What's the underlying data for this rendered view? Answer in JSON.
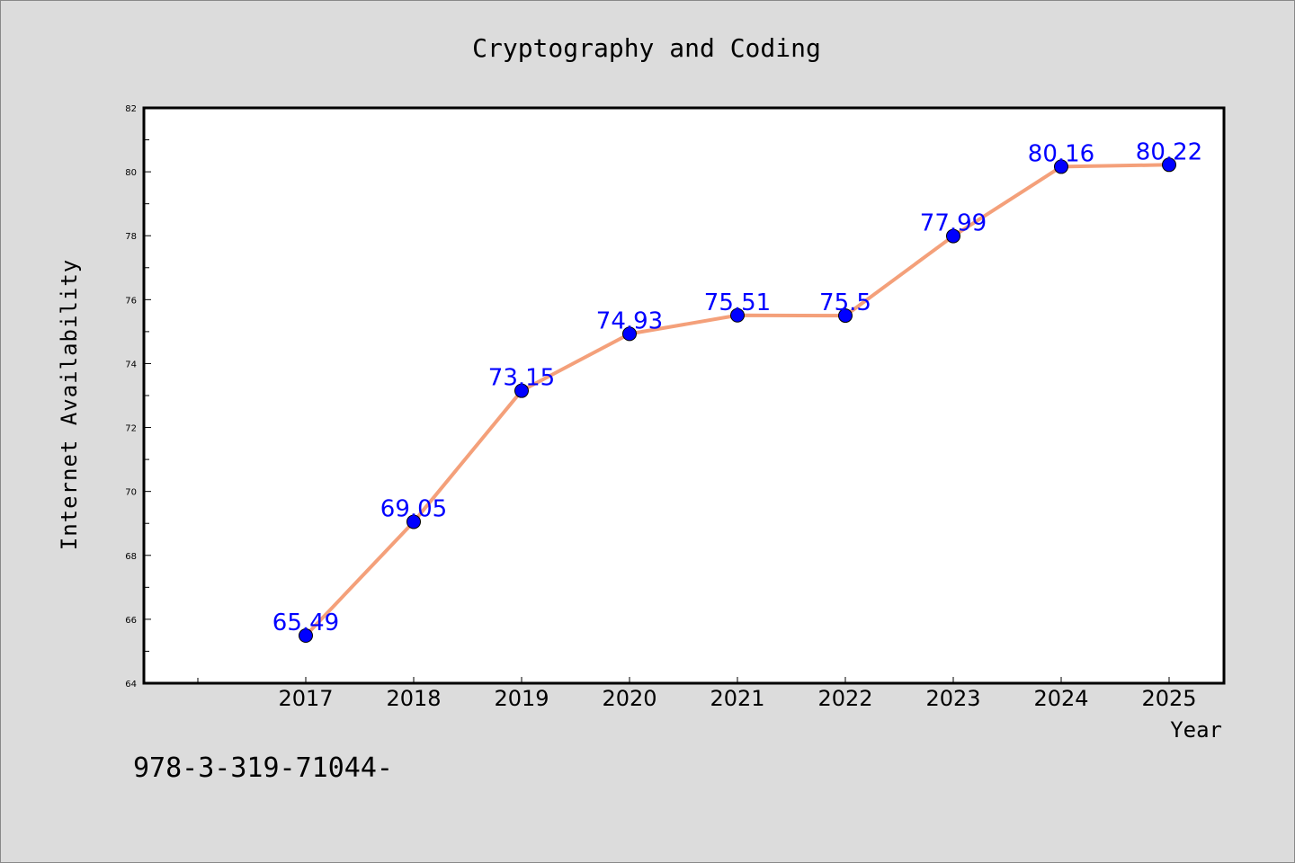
{
  "chart_data": {
    "type": "line",
    "title": "Cryptography and Coding",
    "xlabel": "Year",
    "ylabel": "Internet Availability",
    "categories": [
      "2017",
      "2018",
      "2019",
      "2020",
      "2021",
      "2022",
      "2023",
      "2024",
      "2025"
    ],
    "values": [
      65.49,
      69.05,
      73.15,
      74.93,
      75.51,
      75.5,
      77.99,
      80.16,
      80.22
    ],
    "data_labels": [
      "65.49",
      "69.05",
      "73.15",
      "74.93",
      "75.51",
      "75.5",
      "77.99",
      "80.16",
      "80.22"
    ],
    "ylim": [
      64,
      82
    ],
    "yticks": [
      "64",
      "66",
      "68",
      "70",
      "72",
      "74",
      "76",
      "78",
      "80",
      "82"
    ],
    "line_color": "#f4a07a",
    "marker_color": "#0000ff",
    "label_color": "#0000ff",
    "grid": false,
    "legend": "none"
  },
  "footnote": "978-3-319-71044-",
  "colors": {
    "background": "#dcdcdc",
    "plot_background": "#ffffff"
  }
}
